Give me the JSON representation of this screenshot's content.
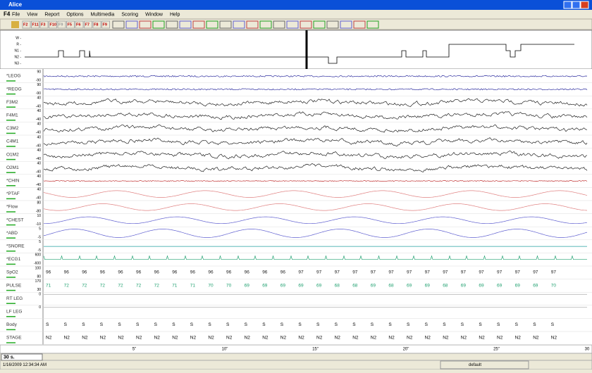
{
  "window": {
    "title": "Alice",
    "doc": "F4",
    "menu": [
      "File",
      "View",
      "Report",
      "Options",
      "Multimedia",
      "Scoring",
      "Window",
      "Help"
    ]
  },
  "toolbar": {
    "buttons": [
      "F2",
      "F11",
      "F3",
      "F10",
      "F9",
      "F5",
      "F6",
      "F7",
      "F8",
      "F9"
    ]
  },
  "hypnogram": {
    "stages": [
      "W -",
      "R -",
      "N1 -",
      "N2 -",
      "N3 -"
    ]
  },
  "channels": [
    {
      "label": "*LEOG",
      "color": "#3030a0",
      "top": "90",
      "bottom": "-90"
    },
    {
      "label": "*REOG",
      "color": "#3030a0",
      "top": "90",
      "bottom": "-90"
    },
    {
      "label": "F3M2",
      "color": "#202020",
      "top": "40",
      "bottom": "-40"
    },
    {
      "label": "F4M1",
      "color": "#202020",
      "top": "40",
      "bottom": "-40"
    },
    {
      "label": "C3M2",
      "color": "#202020",
      "top": "40",
      "bottom": "-40"
    },
    {
      "label": "C4M1",
      "color": "#202020",
      "top": "40",
      "bottom": "-40"
    },
    {
      "label": "O1M2",
      "color": "#202020",
      "top": "40",
      "bottom": "-40"
    },
    {
      "label": "O2M1",
      "color": "#202020",
      "top": "40",
      "bottom": "-40"
    },
    {
      "label": "*CHIN",
      "color": "#c03030",
      "top": "40",
      "bottom": "-40"
    },
    {
      "label": "*PTAF",
      "color": "#e08080",
      "top": "40",
      "bottom": "-40"
    },
    {
      "label": "*Flow",
      "color": "#e08080",
      "top": "80",
      "bottom": "-80"
    },
    {
      "label": "*CHEST",
      "color": "#6060d0",
      "top": "10",
      "bottom": "-10"
    },
    {
      "label": "*ABD",
      "color": "#6060d0",
      "top": "5",
      "bottom": "-5"
    },
    {
      "label": "*SNORE",
      "color": "#20a0a0",
      "top": "5",
      "bottom": "-5"
    },
    {
      "label": "*ECG1",
      "color": "#20a070",
      "top": "600",
      "bottom": "-600"
    }
  ],
  "spo2": {
    "label": "SpO2",
    "top": "100",
    "bottom": "80",
    "values": [
      96,
      96,
      96,
      96,
      96,
      96,
      96,
      96,
      96,
      96,
      96,
      96,
      96,
      96,
      97,
      97,
      97,
      97,
      97,
      97,
      97,
      97,
      97,
      97,
      97,
      97,
      97,
      97,
      97
    ]
  },
  "pulse": {
    "label": "PULSE",
    "top": "170",
    "bottom": "30",
    "values": [
      71,
      72,
      72,
      72,
      72,
      72,
      72,
      71,
      71,
      70,
      70,
      69,
      69,
      69,
      69,
      69,
      68,
      68,
      69,
      68,
      69,
      69,
      68,
      69,
      69,
      69,
      69,
      69,
      70
    ]
  },
  "rtleg": {
    "label": "RT LEG",
    "top": "0"
  },
  "lfleg": {
    "label": "LF LEG",
    "top": "0"
  },
  "body": {
    "label": "Body",
    "values": [
      "S",
      "S",
      "S",
      "S",
      "S",
      "S",
      "S",
      "S",
      "S",
      "S",
      "S",
      "S",
      "S",
      "S",
      "S",
      "S",
      "S",
      "S",
      "S",
      "S",
      "S",
      "S",
      "S",
      "S",
      "S",
      "S",
      "S",
      "S",
      "S"
    ]
  },
  "stage": {
    "label": "STAGE",
    "values": [
      "N2",
      "N2",
      "N2",
      "N2",
      "N2",
      "N2",
      "N2",
      "N2",
      "N2",
      "N2",
      "N2",
      "N2",
      "N2",
      "N2",
      "N2",
      "N2",
      "N2",
      "N2",
      "N2",
      "N2",
      "N2",
      "N2",
      "N2",
      "N2",
      "N2",
      "N2",
      "N2",
      "N2",
      "N2"
    ]
  },
  "time_axis": [
    "5\"",
    "10\"",
    "15\"",
    "20\"",
    "25\"",
    "30"
  ],
  "status": {
    "epoch": "30 s.",
    "datetime": "1/16/2009 12:34:34 AM",
    "profile": "default"
  }
}
